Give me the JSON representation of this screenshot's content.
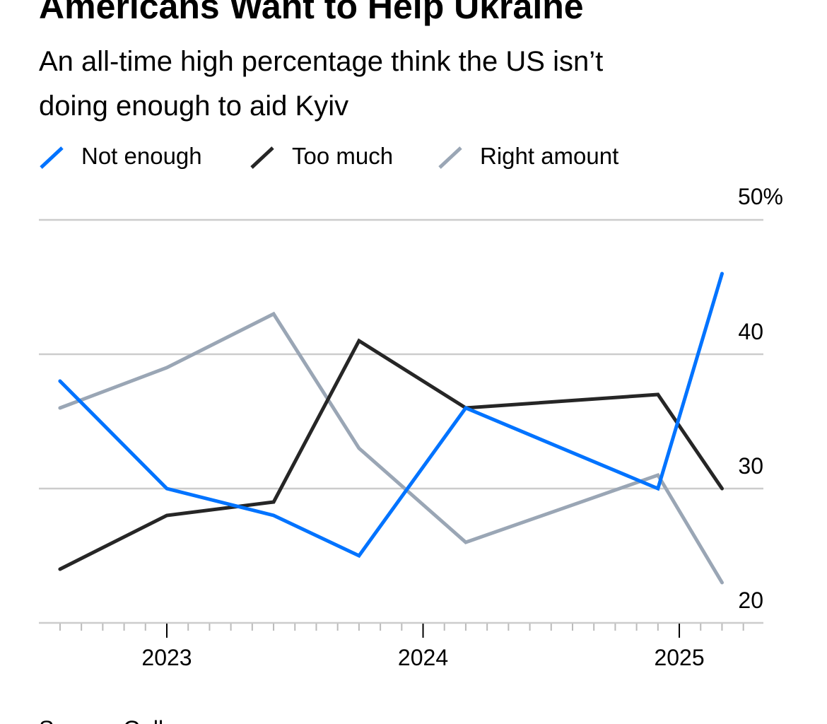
{
  "chart_data": {
    "type": "line",
    "title": "Americans Want to Help Ukraine",
    "subtitle": [
      "An all-time high percentage think the US isn’t",
      "doing enough to aid Kyiv"
    ],
    "source": "Source: Gallup",
    "x": [
      "2022-08",
      "2023-01",
      "2023-06",
      "2023-10",
      "2024-03",
      "2024-12",
      "2025-03"
    ],
    "xticks": [
      "2023",
      "2024",
      "2025"
    ],
    "yticks": [
      "50%",
      "40",
      "30",
      "20"
    ],
    "ylim": [
      20,
      50
    ],
    "grid": true,
    "legend": "top-left",
    "series": [
      {
        "name": "Not enough",
        "color": "#0073ff",
        "values": [
          38,
          30,
          28,
          25,
          36,
          30,
          46
        ]
      },
      {
        "name": "Too much",
        "color": "#262626",
        "values": [
          24,
          28,
          29,
          41,
          36,
          37,
          30
        ]
      },
      {
        "name": "Right amount",
        "color": "#9aa6b5",
        "values": [
          36,
          39,
          43,
          33,
          26,
          31,
          23
        ]
      }
    ]
  }
}
